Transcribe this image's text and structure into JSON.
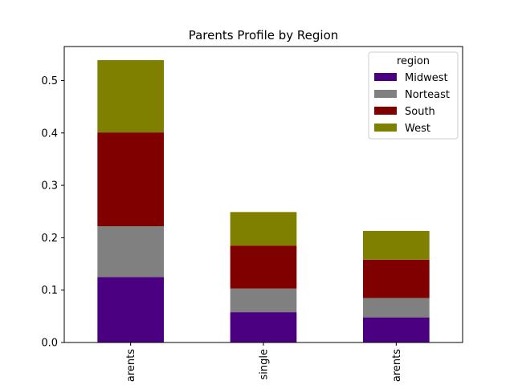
{
  "chart_data": {
    "type": "bar",
    "stacked": true,
    "title": "Parents Profile by Region",
    "xlabel": "",
    "ylabel": "",
    "categories": [
      "arents",
      "single",
      "arents"
    ],
    "series": [
      {
        "name": "Midwest",
        "color": "#4b0082",
        "values": [
          0.125,
          0.058,
          0.048
        ]
      },
      {
        "name": "Norteast",
        "color": "#808080",
        "values": [
          0.097,
          0.045,
          0.037
        ]
      },
      {
        "name": "South",
        "color": "#800000",
        "values": [
          0.179,
          0.082,
          0.073
        ]
      },
      {
        "name": "West",
        "color": "#808000",
        "values": [
          0.138,
          0.064,
          0.055
        ]
      }
    ],
    "ylim": [
      0,
      0.565
    ],
    "yticks": [
      0.0,
      0.1,
      0.2,
      0.3,
      0.4,
      0.5
    ],
    "ytick_labels": [
      "0.0",
      "0.1",
      "0.2",
      "0.3",
      "0.4",
      "0.5"
    ],
    "grid": false,
    "legend": {
      "title": "region",
      "placement": "top-right"
    }
  }
}
